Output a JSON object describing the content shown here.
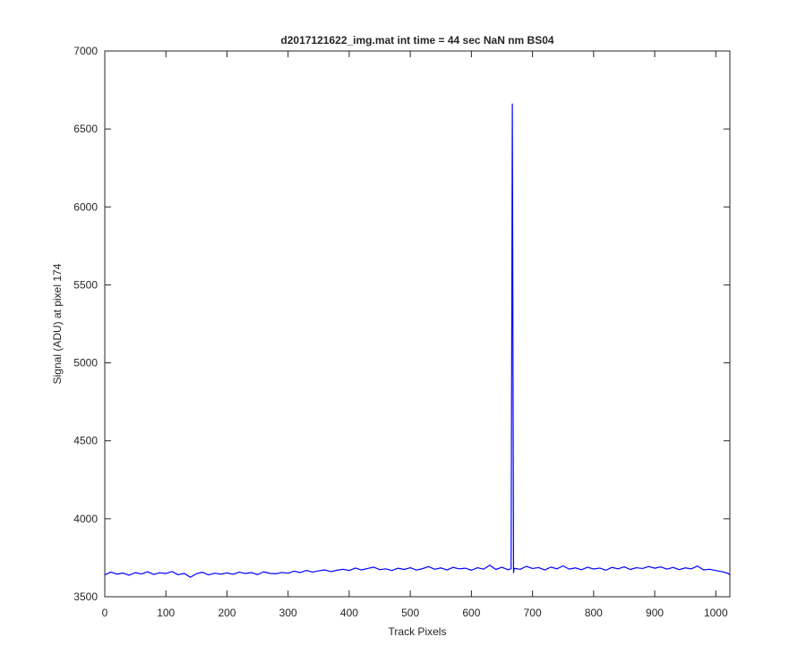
{
  "chart_data": {
    "type": "line",
    "title": "d2017121622_img.mat int time = 44 sec  NaN nm BS04",
    "x_label": "Track Pixels",
    "y_label": "Signal (ADU) at pixel 174",
    "x": [
      0,
      10,
      20,
      30,
      40,
      50,
      60,
      70,
      80,
      90,
      100,
      110,
      120,
      130,
      140,
      150,
      160,
      170,
      180,
      190,
      200,
      210,
      220,
      230,
      240,
      250,
      260,
      270,
      280,
      290,
      300,
      310,
      320,
      330,
      340,
      350,
      360,
      370,
      380,
      390,
      400,
      410,
      420,
      430,
      440,
      450,
      460,
      470,
      480,
      490,
      500,
      510,
      520,
      530,
      540,
      550,
      560,
      570,
      580,
      590,
      600,
      610,
      620,
      630,
      640,
      650,
      660,
      665,
      667,
      669,
      670,
      680,
      690,
      700,
      710,
      720,
      730,
      740,
      750,
      760,
      770,
      780,
      790,
      800,
      810,
      820,
      830,
      840,
      850,
      860,
      870,
      880,
      890,
      900,
      910,
      920,
      930,
      940,
      950,
      960,
      970,
      980,
      990,
      1000,
      1010,
      1020,
      1023
    ],
    "series": [
      {
        "color": "#0000ff",
        "values": [
          3640,
          3658,
          3645,
          3652,
          3638,
          3655,
          3646,
          3660,
          3643,
          3654,
          3649,
          3662,
          3641,
          3650,
          3625,
          3648,
          3657,
          3640,
          3651,
          3645,
          3653,
          3644,
          3658,
          3649,
          3655,
          3642,
          3660,
          3650,
          3647,
          3656,
          3651,
          3664,
          3655,
          3669,
          3658,
          3666,
          3672,
          3661,
          3670,
          3676,
          3668,
          3684,
          3672,
          3681,
          3690,
          3674,
          3679,
          3668,
          3683,
          3675,
          3686,
          3671,
          3680,
          3693,
          3676,
          3685,
          3672,
          3688,
          3679,
          3683,
          3670,
          3686,
          3677,
          3702,
          3675,
          3689,
          3673,
          3680,
          6660,
          3655,
          3682,
          3676,
          3695,
          3681,
          3687,
          3672,
          3690,
          3679,
          3698,
          3677,
          3685,
          3673,
          3689,
          3678,
          3684,
          3670,
          3688,
          3679,
          3692,
          3675,
          3686,
          3681,
          3694,
          3683,
          3691,
          3677,
          3688,
          3674,
          3685,
          3679,
          3697,
          3672,
          3676,
          3668,
          3661,
          3650,
          3640
        ]
      }
    ],
    "xlim": [
      0,
      1023
    ],
    "ylim": [
      3500,
      7000
    ],
    "xticks": [
      0,
      100,
      200,
      300,
      400,
      500,
      600,
      700,
      800,
      900,
      1000
    ],
    "yticks": [
      3500,
      4000,
      4500,
      5000,
      5500,
      6000,
      6500,
      7000
    ],
    "grid": false
  }
}
